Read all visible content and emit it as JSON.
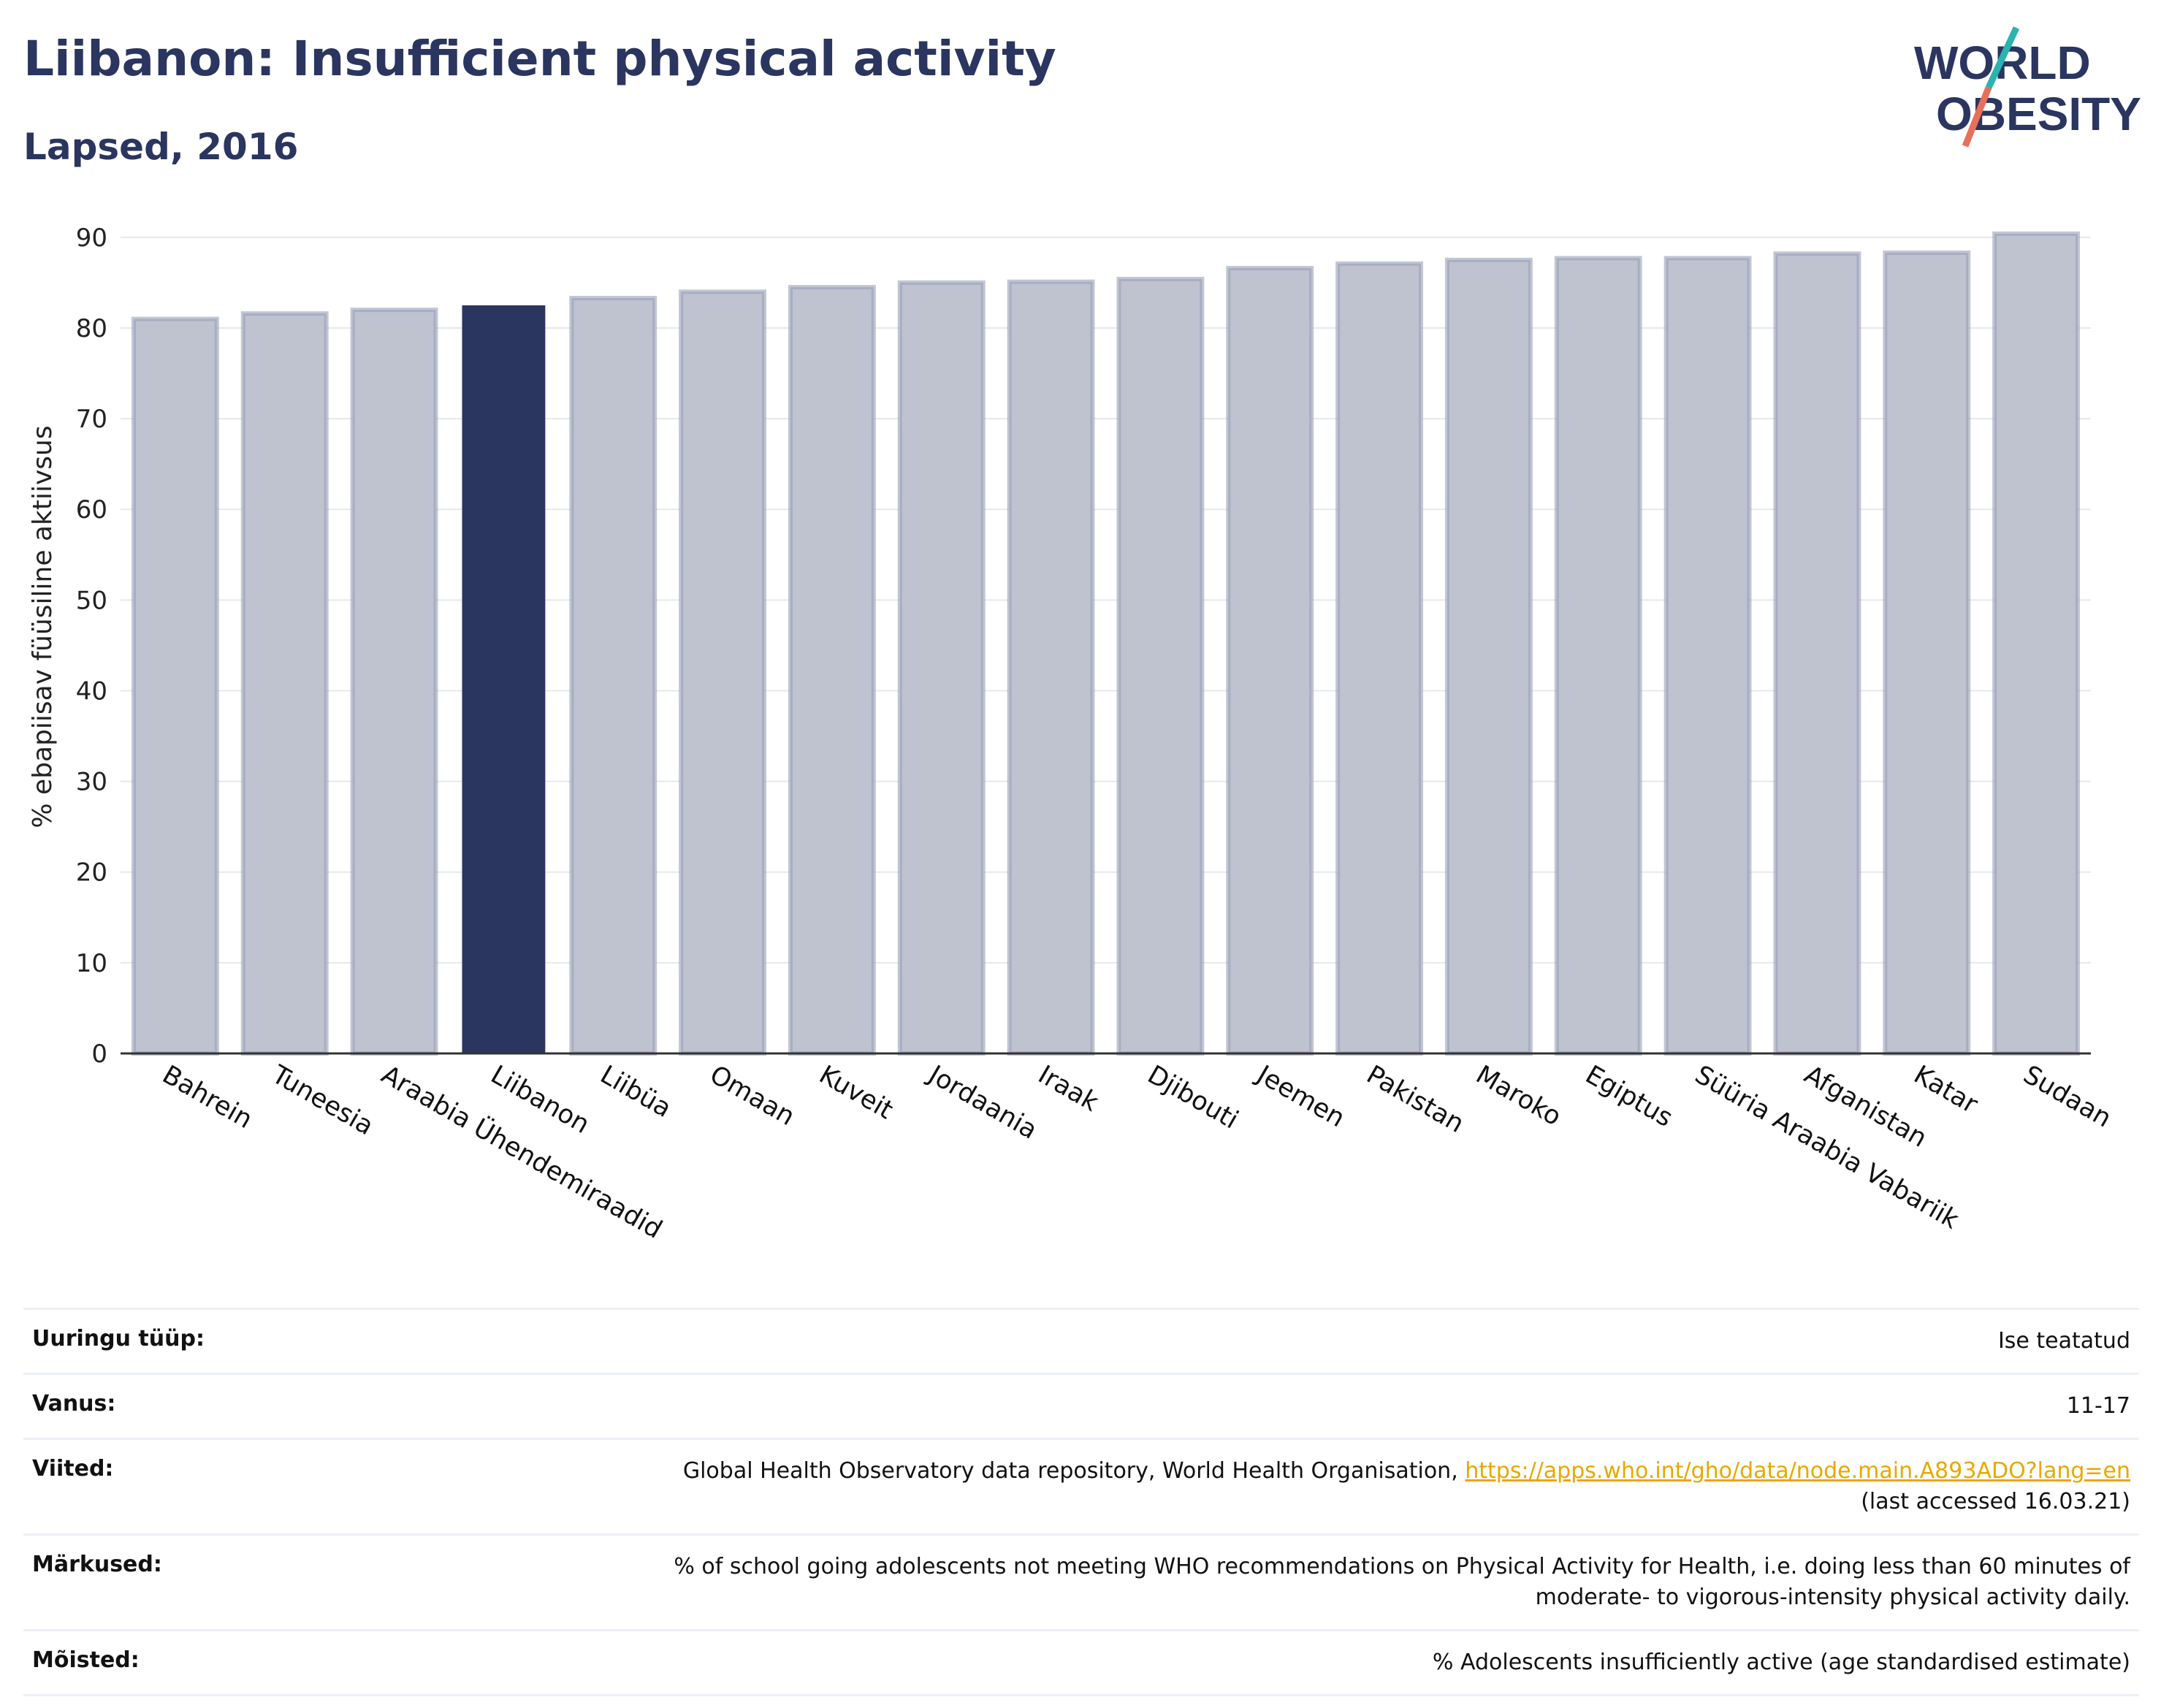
{
  "header": {
    "title": "Liibanon: Insufficient physical activity",
    "subtitle": "Lapsed, 2016"
  },
  "logo": {
    "line1": "WORLD",
    "line2": "OBESITY"
  },
  "colors": {
    "highlight": "#2a3560",
    "bar_fill": "#bfc2cf",
    "bar_stroke": "#9aa0b8",
    "link": "#e9a800"
  },
  "chart_data": {
    "type": "bar",
    "ylabel": "% ebapiisav füüsiline aktiivsus",
    "ylim": [
      0,
      92
    ],
    "yticks": [
      0,
      10,
      20,
      30,
      40,
      50,
      60,
      70,
      80,
      90
    ],
    "grid": true,
    "highlight": "Liibanon",
    "categories": [
      "Bahrein",
      "Tuneesia",
      "Araabia Ühendemiraadid",
      "Liibanon",
      "Liibüa",
      "Omaan",
      "Kuveit",
      "Jordaania",
      "Iraak",
      "Djibouti",
      "Jeemen",
      "Pakistan",
      "Maroko",
      "Egiptus",
      "Süüria Araabia Vabariik",
      "Afganistan",
      "Katar",
      "Sudaan"
    ],
    "values": [
      81.0,
      81.6,
      82.0,
      82.5,
      83.3,
      84.0,
      84.5,
      85.0,
      85.1,
      85.4,
      86.6,
      87.1,
      87.5,
      87.7,
      87.7,
      88.2,
      88.3,
      90.4
    ]
  },
  "info": {
    "rows": [
      {
        "key": "Uuringu tüüp:",
        "value": "Ise teatatud"
      },
      {
        "key": "Vanus:",
        "value": "11-17"
      },
      {
        "key": "Viited:",
        "value_pre": "Global Health Observatory data repository, World Health Organisation, ",
        "link": "https://apps.who.int/gho/data/node.main.A893ADO?lang=en",
        "value_post": "(last accessed 16.03.21)"
      },
      {
        "key": "Märkused:",
        "value": "% of school going adolescents not meeting WHO recommendations on Physical Activity for Health, i.e. doing less than 60 minutes of moderate- to vigorous-intensity physical activity daily."
      },
      {
        "key": "Mõisted:",
        "value": "% Adolescents insufficiently active (age standardised estimate)"
      }
    ]
  }
}
